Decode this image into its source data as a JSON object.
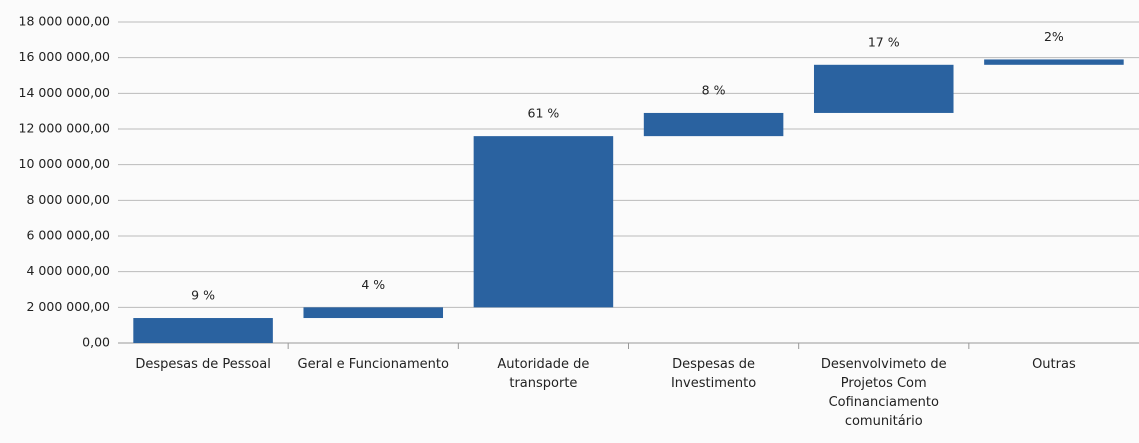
{
  "chart_data": {
    "type": "waterfall",
    "categories": [
      "Despesas de Pessoal",
      "Geral e Funcionamento",
      "Autoridade de transporte",
      "Despesas de Investimento",
      "Desenvolvimeto de Projetos Com Cofinanciamento comunitário",
      "Outras"
    ],
    "values": [
      1400000,
      600000,
      9600000,
      1300000,
      2700000,
      300000
    ],
    "shares": [
      9,
      4,
      61,
      8,
      17,
      2
    ],
    "share_labels": [
      "9 %",
      "4 %",
      "61 %",
      "8 %",
      "17 %",
      "2%"
    ],
    "color": "#2a62a0",
    "ylim": [
      0,
      18000000
    ],
    "yticks": [
      {
        "value": 0,
        "label": "0,00"
      },
      {
        "value": 2000000,
        "label": "2 000 000,00"
      },
      {
        "value": 4000000,
        "label": "4 000 000,00"
      },
      {
        "value": 6000000,
        "label": "6 000 000,00"
      },
      {
        "value": 8000000,
        "label": "8 000 000,00"
      },
      {
        "value": 10000000,
        "label": "10 000 000,00"
      },
      {
        "value": 12000000,
        "label": "12 000 000,00"
      },
      {
        "value": 14000000,
        "label": "14 000 000,00"
      },
      {
        "value": 16000000,
        "label": "16 000 000,00"
      },
      {
        "value": 18000000,
        "label": "18 000 000,00"
      }
    ],
    "grid": true
  }
}
